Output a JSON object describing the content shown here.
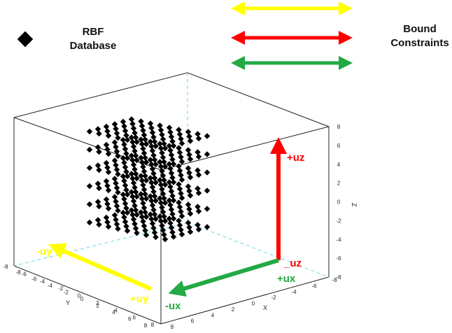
{
  "legend": {
    "database_line1": "RBF",
    "database_line2": "Database",
    "constraints_line1": "Bound",
    "constraints_line2": "Constraints",
    "arrow_colors": [
      "#ffff00",
      "#ff0000",
      "#22aa44"
    ]
  },
  "axes": {
    "x_name": "X",
    "y_name": "Y",
    "z_name": "Z",
    "x_ticks": [
      "-8",
      "-6",
      "-4",
      "-2",
      "0",
      "2",
      "4",
      "6",
      "8"
    ],
    "y_ticks": [
      "-8",
      "-6",
      "-4",
      "-2",
      "0",
      "2",
      "4",
      "6",
      "8"
    ],
    "z_ticks": [
      "8",
      "6",
      "4",
      "2",
      "0",
      "-2",
      "-4",
      "-6",
      "-8"
    ],
    "left_ticks": [
      "-8",
      "-6",
      "-4",
      "-2",
      "0",
      "2",
      "4",
      "6",
      "8"
    ]
  },
  "arrows": {
    "uz_plus": "+uz",
    "uz_minus": "_uz",
    "ux_plus": "+ux",
    "ux_minus": "-ux",
    "uy_plus": "+uy",
    "uy_minus": "-uy"
  },
  "colors": {
    "yellow": "#ffff00",
    "red": "#ff0000",
    "green": "#22aa44",
    "database_point": "#000000"
  }
}
